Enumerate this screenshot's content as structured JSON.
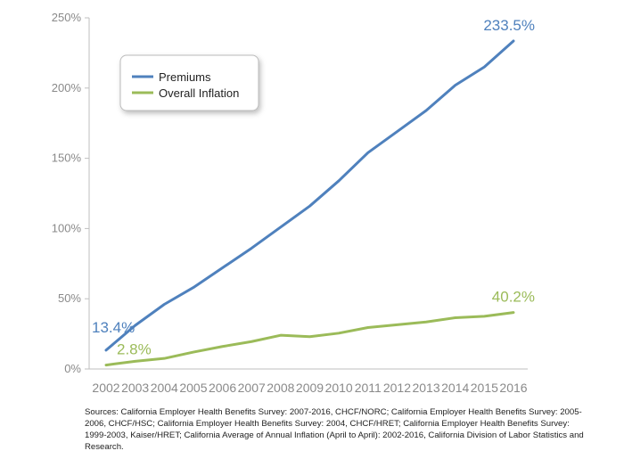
{
  "chart_data": {
    "type": "line",
    "categories": [
      "2002",
      "2003",
      "2004",
      "2005",
      "2006",
      "2007",
      "2008",
      "2009",
      "2010",
      "2011",
      "2012",
      "2013",
      "2014",
      "2015",
      "2016"
    ],
    "series": [
      {
        "name": "Premiums",
        "color": "#4f81bd",
        "values": [
          13.4,
          31,
          46,
          58,
          72,
          86,
          101,
          116,
          134,
          154,
          169,
          184,
          202,
          215,
          233.5
        ],
        "start_label": "13.4%",
        "end_label": "233.5%"
      },
      {
        "name": "Overall Inflation",
        "color": "#9bbb59",
        "values": [
          2.8,
          5.5,
          7.5,
          12,
          16,
          19.5,
          24,
          23,
          25.5,
          29.5,
          31.5,
          33.5,
          36.5,
          37.5,
          40.2
        ],
        "start_label": "2.8%",
        "end_label": "40.2%"
      }
    ],
    "ylim": [
      0,
      250
    ],
    "yticks": [
      0,
      50,
      100,
      150,
      200,
      250
    ],
    "ytick_labels": [
      "0%",
      "50%",
      "100%",
      "150%",
      "200%",
      "250%"
    ],
    "legend_position": "top-left",
    "grid": false
  },
  "sources": "Sources: California Employer Health Benefits Survey: 2007-2016, CHCF/NORC; California Employer Health Benefits Survey: 2005-2006, CHCF/HSC; California Employer Health Benefits Survey: 2004, CHCF/HRET; California Employer Health Benefits Survey: 1999-2003, Kaiser/HRET; California Average of Annual Inflation (April to April): 2002-2016, California Division of Labor Statistics and Research."
}
